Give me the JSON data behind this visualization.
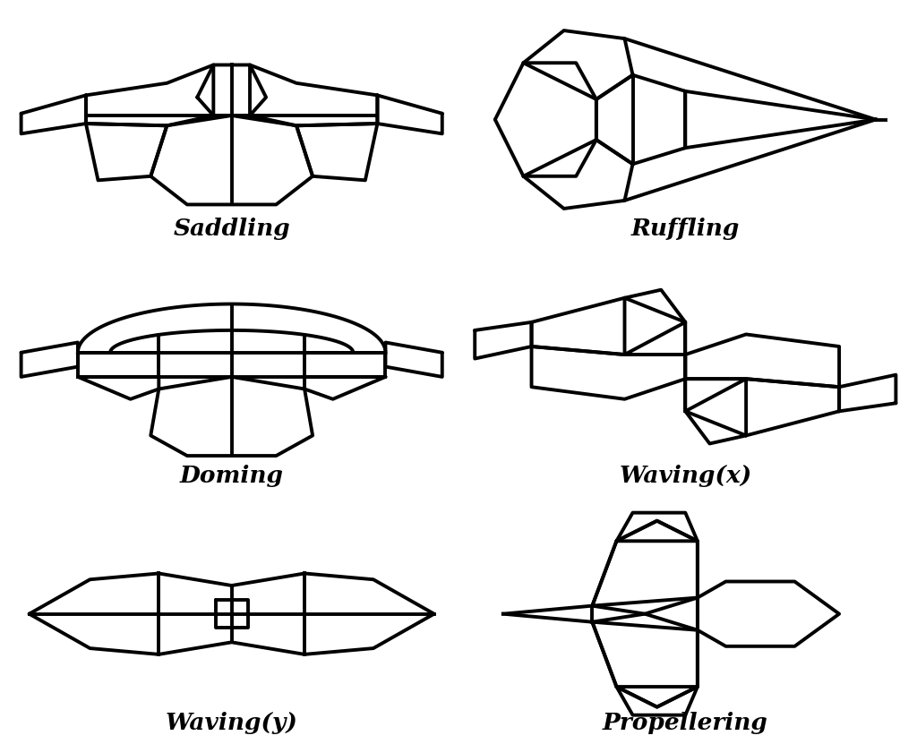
{
  "labels": [
    "Saddling",
    "Ruffling",
    "Doming",
    "Waving(x)",
    "Waving(y)",
    "Propellering"
  ],
  "background_color": "#ffffff",
  "line_color": "#000000",
  "line_width": 2.8,
  "label_fontsize": 19
}
